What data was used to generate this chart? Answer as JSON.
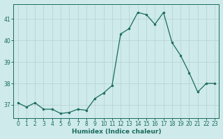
{
  "x": [
    0,
    1,
    2,
    3,
    4,
    5,
    6,
    7,
    8,
    9,
    10,
    11,
    12,
    13,
    14,
    15,
    16,
    17,
    18,
    19,
    20,
    21,
    22,
    23
  ],
  "y": [
    37.1,
    36.9,
    37.1,
    36.8,
    36.8,
    36.6,
    36.65,
    36.8,
    36.75,
    37.3,
    37.55,
    37.9,
    40.3,
    40.55,
    41.3,
    41.2,
    40.75,
    41.3,
    39.9,
    39.3,
    38.5,
    37.6,
    38.0,
    38.0
  ],
  "line_color": "#1a6b5e",
  "marker": "o",
  "marker_size": 2.0,
  "bg_color": "#ceeaea",
  "grid_color": "#b8d4d4",
  "xlabel": "Humidex (Indice chaleur)",
  "ylim": [
    36.4,
    41.7
  ],
  "xlim": [
    -0.5,
    23.5
  ],
  "yticks": [
    37,
    38,
    39,
    40,
    41
  ],
  "xtick_labels": [
    "0",
    "1",
    "2",
    "3",
    "4",
    "5",
    "6",
    "7",
    "8",
    "9",
    "10",
    "11",
    "12",
    "13",
    "14",
    "15",
    "16",
    "17",
    "18",
    "19",
    "20",
    "21",
    "22",
    "23"
  ],
  "axis_fontsize": 6.5,
  "tick_fontsize": 5.5,
  "linewidth": 0.9
}
